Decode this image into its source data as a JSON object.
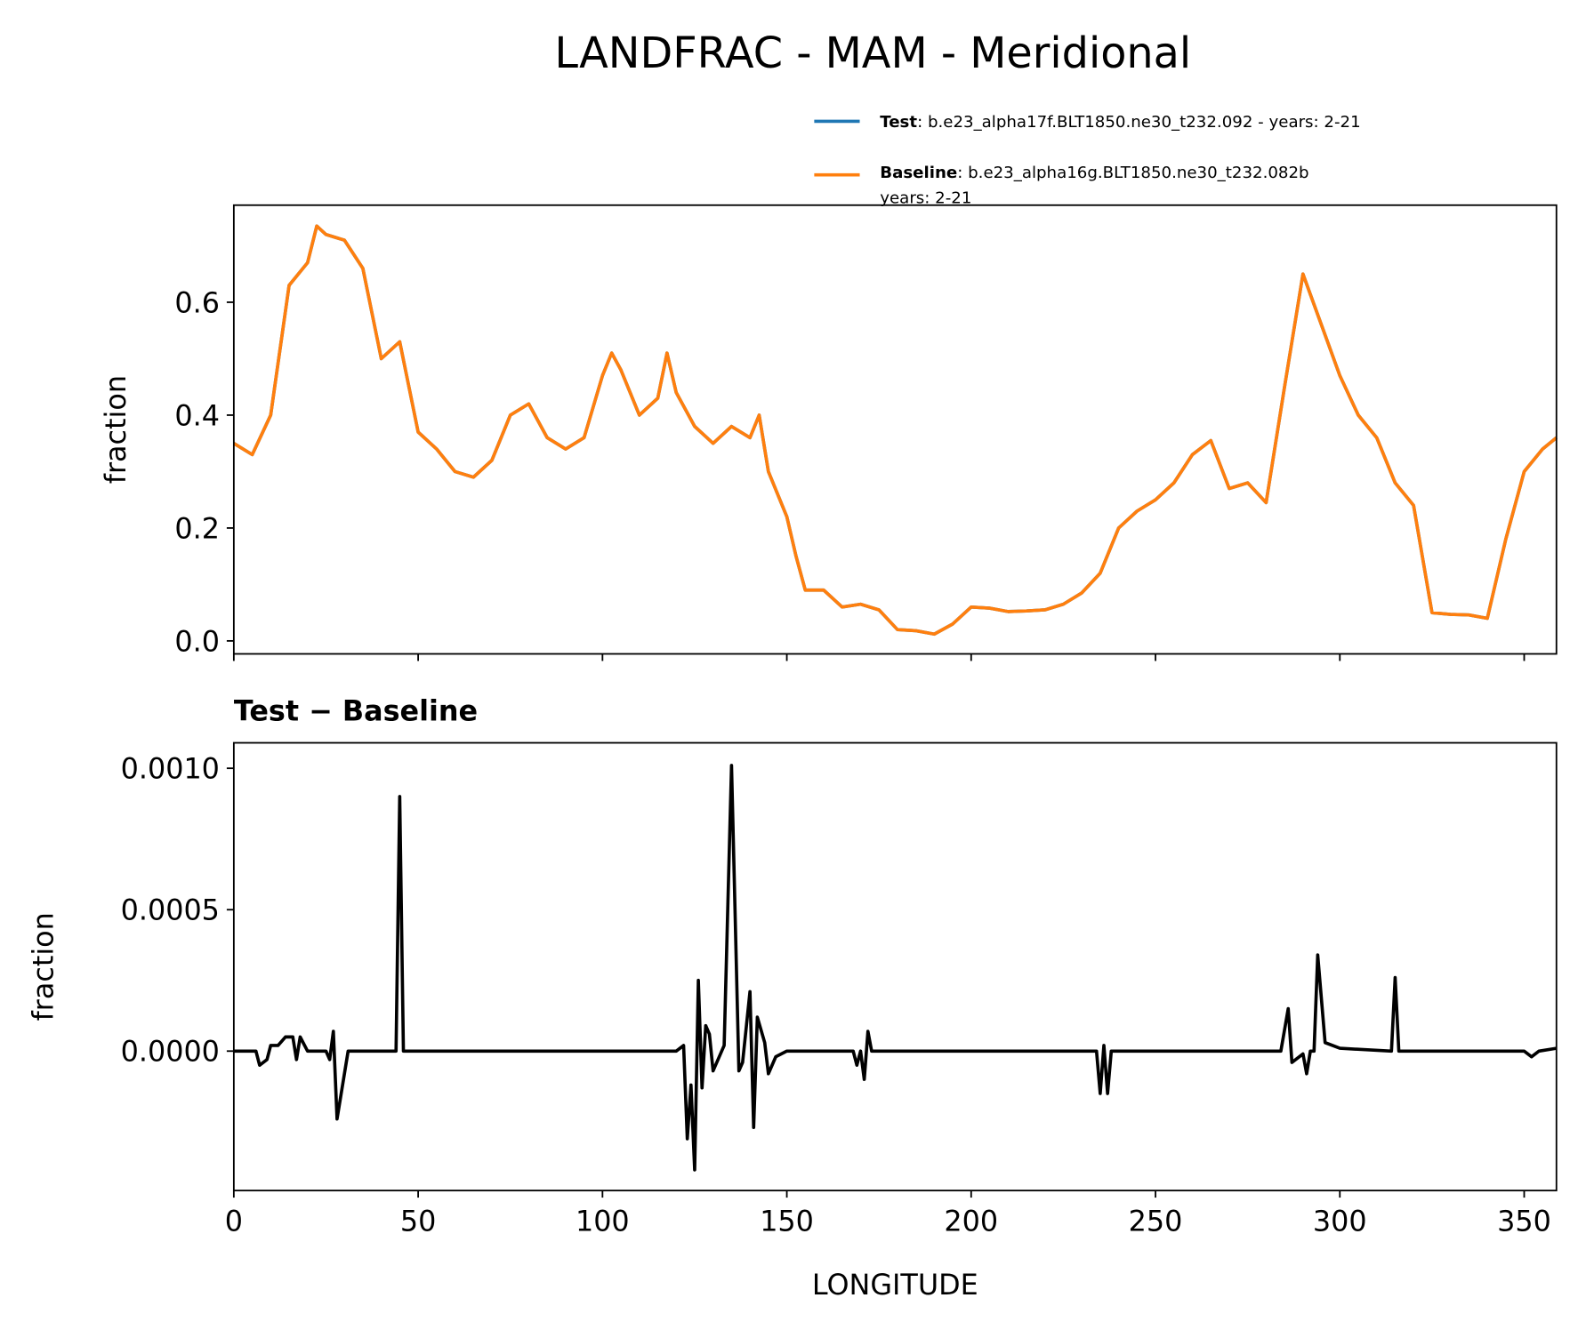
{
  "chart_data": [
    {
      "type": "line",
      "title": "LANDFRAC - MAM - Meridional",
      "ylabel": "fraction",
      "xlim": [
        0,
        358.75
      ],
      "xticks": [
        0,
        50,
        100,
        150,
        200,
        250,
        300,
        350
      ],
      "ylim": [
        -0.023,
        0.772
      ],
      "yticks": [
        {
          "value": 0,
          "label": "0.0"
        },
        {
          "value": 0.2,
          "label": "0.2"
        },
        {
          "value": 0.4,
          "label": "0.4"
        },
        {
          "value": 0.6,
          "label": "0.6"
        }
      ],
      "x": [
        0,
        5,
        10,
        15,
        20,
        22.5,
        25,
        30,
        35,
        40,
        45,
        50,
        55,
        60,
        65,
        70,
        75,
        80,
        85,
        90,
        95,
        100,
        102.5,
        105,
        110,
        115,
        117.5,
        120,
        125,
        130,
        135,
        140,
        142.5,
        145,
        150,
        152.5,
        155,
        160,
        165,
        170,
        175,
        180,
        185,
        190,
        195,
        200,
        205,
        210,
        215,
        220,
        225,
        230,
        235,
        240,
        245,
        250,
        255,
        260,
        265,
        270,
        275,
        280,
        285,
        290,
        295,
        300,
        305,
        310,
        315,
        320,
        325,
        330,
        335,
        340,
        345,
        350,
        355,
        358.75
      ],
      "series": [
        {
          "name": "Test",
          "label_detail": [
            ": b.e23_alpha17f.BLT1850.ne30_t232.092 - years: 2-21"
          ],
          "color": "#1f77b4",
          "values": [
            0.35,
            0.33,
            0.4,
            0.63,
            0.67,
            0.735,
            0.72,
            0.71,
            0.66,
            0.5,
            0.53,
            0.37,
            0.34,
            0.3,
            0.29,
            0.32,
            0.4,
            0.42,
            0.36,
            0.34,
            0.36,
            0.47,
            0.51,
            0.48,
            0.4,
            0.43,
            0.51,
            0.44,
            0.38,
            0.35,
            0.38,
            0.36,
            0.4,
            0.3,
            0.22,
            0.15,
            0.09,
            0.09,
            0.06,
            0.065,
            0.055,
            0.02,
            0.018,
            0.012,
            0.03,
            0.06,
            0.058,
            0.052,
            0.053,
            0.055,
            0.065,
            0.085,
            0.12,
            0.2,
            0.23,
            0.25,
            0.28,
            0.33,
            0.355,
            0.27,
            0.28,
            0.245,
            0.45,
            0.65,
            0.56,
            0.47,
            0.4,
            0.36,
            0.28,
            0.24,
            0.05,
            0.047,
            0.046,
            0.04,
            0.18,
            0.3,
            0.34,
            0.36
          ]
        },
        {
          "name": "Baseline",
          "label_detail": [
            ": b.e23_alpha16g.BLT1850.ne30_t232.082b",
            "years: 2-21"
          ],
          "color": "#ff7f0e",
          "values": [
            0.35,
            0.33,
            0.4,
            0.63,
            0.67,
            0.735,
            0.72,
            0.71,
            0.66,
            0.5,
            0.53,
            0.37,
            0.34,
            0.3,
            0.29,
            0.32,
            0.4,
            0.42,
            0.36,
            0.34,
            0.36,
            0.47,
            0.51,
            0.48,
            0.4,
            0.43,
            0.51,
            0.44,
            0.38,
            0.35,
            0.38,
            0.36,
            0.4,
            0.3,
            0.22,
            0.15,
            0.09,
            0.09,
            0.06,
            0.065,
            0.055,
            0.02,
            0.018,
            0.012,
            0.03,
            0.06,
            0.058,
            0.052,
            0.053,
            0.055,
            0.065,
            0.085,
            0.12,
            0.2,
            0.23,
            0.25,
            0.28,
            0.33,
            0.355,
            0.27,
            0.28,
            0.245,
            0.45,
            0.65,
            0.56,
            0.47,
            0.4,
            0.36,
            0.28,
            0.24,
            0.05,
            0.047,
            0.046,
            0.04,
            0.18,
            0.3,
            0.34,
            0.36
          ]
        }
      ]
    },
    {
      "type": "line",
      "title": "Test − Baseline",
      "ylabel": "fraction",
      "xlabel": "LONGITUDE",
      "xlim": [
        0,
        358.75
      ],
      "xticks": [
        0,
        50,
        100,
        150,
        200,
        250,
        300,
        350
      ],
      "ylim": [
        -0.000493,
        0.00109
      ],
      "yticks": [
        {
          "value": 0,
          "label": "0.0000"
        },
        {
          "value": 0.0005,
          "label": "0.0005"
        },
        {
          "value": 0.001,
          "label": "0.0010"
        }
      ],
      "x": [
        0,
        6,
        7,
        9,
        10,
        12,
        14,
        16,
        17,
        18,
        20,
        25,
        26,
        27,
        28,
        31,
        40,
        44,
        45,
        46,
        48,
        50,
        120,
        122,
        123,
        124,
        125,
        126,
        127,
        128,
        129,
        130,
        133,
        135,
        137,
        138,
        140,
        141,
        142,
        144,
        145,
        147,
        150,
        168,
        169,
        170,
        171,
        172,
        173,
        234,
        235,
        236,
        237,
        238,
        284,
        286,
        287,
        290,
        291,
        292,
        293,
        294,
        296,
        300,
        314,
        315,
        316,
        350,
        352,
        354,
        358.75
      ],
      "series": [
        {
          "color": "#000000",
          "values": [
            0,
            0,
            -5e-05,
            -3e-05,
            2e-05,
            2e-05,
            5e-05,
            5e-05,
            -3e-05,
            5e-05,
            0,
            0,
            -3e-05,
            7e-05,
            -0.00024,
            0,
            0,
            0,
            0.0009,
            0,
            0,
            0,
            0,
            2e-05,
            -0.00031,
            -0.00012,
            -0.00042,
            0.00025,
            -0.00013,
            9e-05,
            6e-05,
            -7e-05,
            2e-05,
            0.00101,
            -7e-05,
            -4e-05,
            0.00021,
            -0.00027,
            0.00012,
            3e-05,
            -8e-05,
            -2e-05,
            0,
            0,
            -5e-05,
            0,
            -0.0001,
            7e-05,
            0,
            0,
            -0.00015,
            2e-05,
            -0.00015,
            0,
            0,
            0.00015,
            -4e-05,
            -1e-05,
            -8e-05,
            0,
            0,
            0.00034,
            3e-05,
            1e-05,
            0,
            0.00026,
            0,
            0,
            -2e-05,
            0,
            1e-05
          ]
        }
      ]
    }
  ]
}
